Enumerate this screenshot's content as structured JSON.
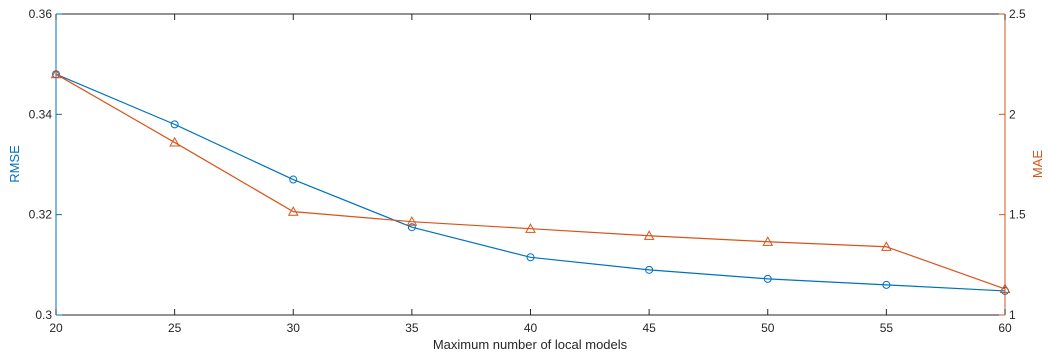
{
  "chart_data": {
    "type": "line",
    "xlabel": "Maximum number of local models",
    "ylabel_left": "RMSE",
    "ylabel_right": "MAE",
    "xlim": [
      20,
      60
    ],
    "ylim_left": [
      0.3,
      0.36
    ],
    "ylim_right": [
      1,
      2.5
    ],
    "x_ticks": [
      "20",
      "25",
      "30",
      "35",
      "40",
      "45",
      "50",
      "55",
      "60"
    ],
    "y_left_ticks": [
      "0.3",
      "0.32",
      "0.34",
      "0.36"
    ],
    "y_right_ticks": [
      "1",
      "1.5",
      "2",
      "2.5"
    ],
    "grid": false,
    "x": [
      20,
      25,
      30,
      35,
      40,
      45,
      50,
      55,
      60
    ],
    "series": [
      {
        "axis": "left",
        "color": "#0072BD",
        "marker": "circle",
        "values": [
          0.348,
          0.338,
          0.327,
          0.3175,
          0.3115,
          0.309,
          0.3072,
          0.306,
          0.3048
        ]
      },
      {
        "axis": "right",
        "color": "#D95319",
        "marker": "triangle",
        "values": [
          2.2,
          1.86,
          1.515,
          1.465,
          1.43,
          1.395,
          1.365,
          1.34,
          1.13
        ]
      }
    ]
  }
}
